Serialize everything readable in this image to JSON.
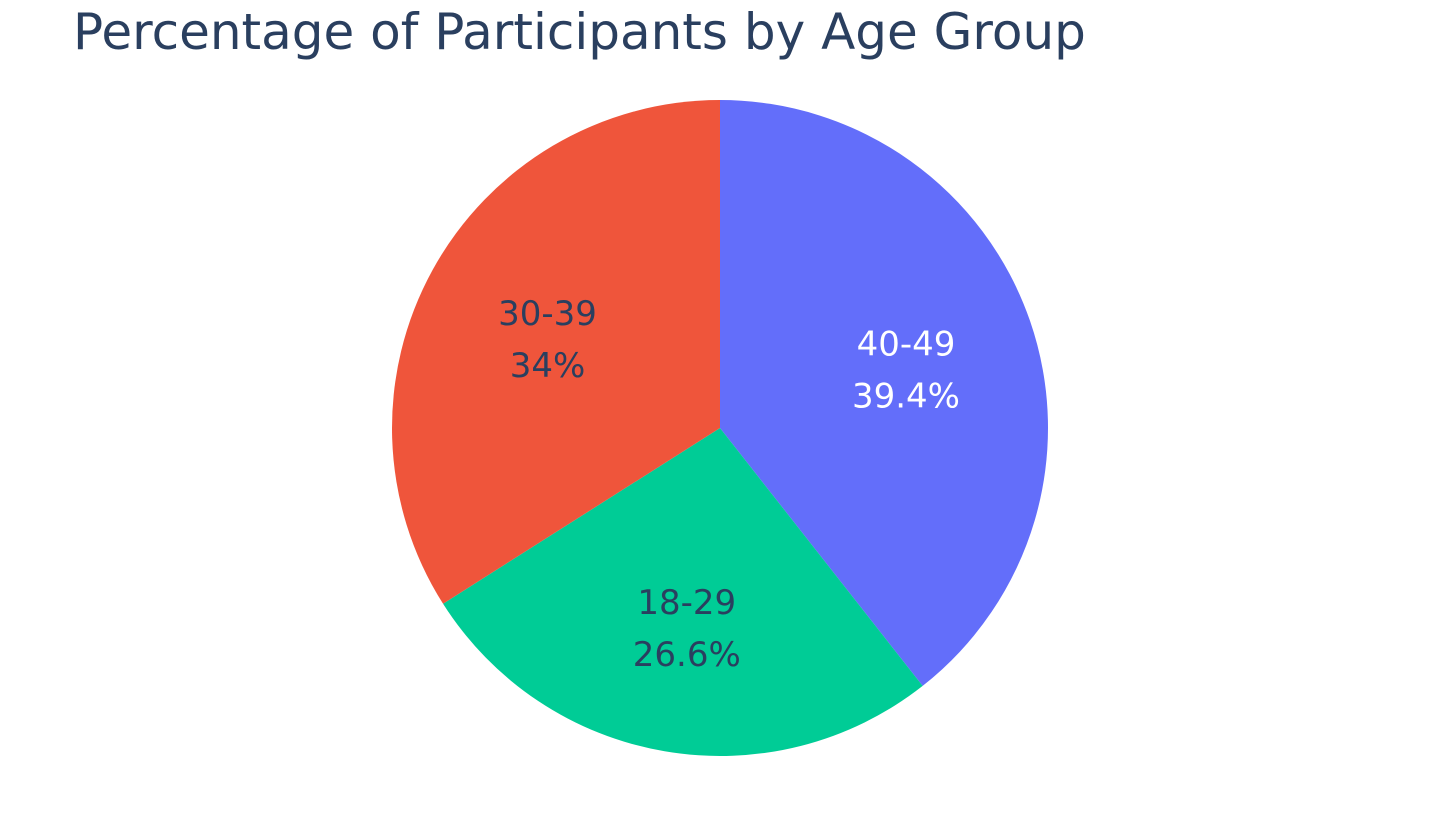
{
  "chart_data": {
    "type": "pie",
    "title": "Percentage of Participants by Age Group",
    "categories": [
      "40-49",
      "18-29",
      "30-39"
    ],
    "values": [
      39.4,
      26.6,
      34
    ],
    "labels": [
      "39.4%",
      "26.6%",
      "34%"
    ],
    "colors": [
      "#636efa",
      "#00cc96",
      "#ef553b"
    ],
    "label_colors": [
      "#ffffff",
      "#2a3f5f",
      "#2a3f5f"
    ],
    "direction": "clockwise",
    "start": "top",
    "legend": "none"
  }
}
